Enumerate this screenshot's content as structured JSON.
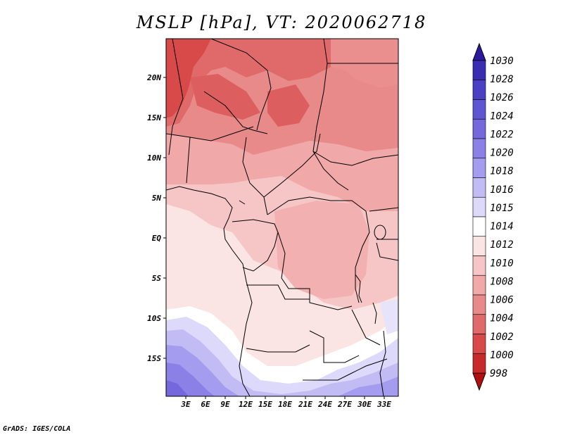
{
  "title": "MSLP [hPa], VT: 2020062718",
  "credit": "GrADS: IGES/COLA",
  "lat_labels": [
    "20N",
    "15N",
    "10N",
    "5N",
    "EQ",
    "5S",
    "10S",
    "15S"
  ],
  "lon_labels": [
    "3E",
    "6E",
    "9E",
    "12E",
    "15E",
    "18E",
    "21E",
    "24E",
    "27E",
    "30E",
    "33E"
  ],
  "colorbar": {
    "levels": [
      "1030",
      "1028",
      "1026",
      "1024",
      "1022",
      "1020",
      "1018",
      "1016",
      "1015",
      "1014",
      "1012",
      "1010",
      "1008",
      "1006",
      "1004",
      "1002",
      "1000",
      "998"
    ],
    "colors": [
      "#2b1a9c",
      "#3a2db2",
      "#4b40c4",
      "#5d55d2",
      "#7468dc",
      "#8a80e6",
      "#a49cee",
      "#c2bcf4",
      "#dcd9fa",
      "#ffffff",
      "#fbe4e4",
      "#f6c6c6",
      "#f0a8a8",
      "#e98a8a",
      "#e06a6a",
      "#d84a4a",
      "#c82a2a",
      "#b01010"
    ]
  },
  "map": {
    "domain_lon": [
      0,
      35
    ],
    "domain_lat": [
      -20,
      24
    ],
    "units": "hPa"
  }
}
